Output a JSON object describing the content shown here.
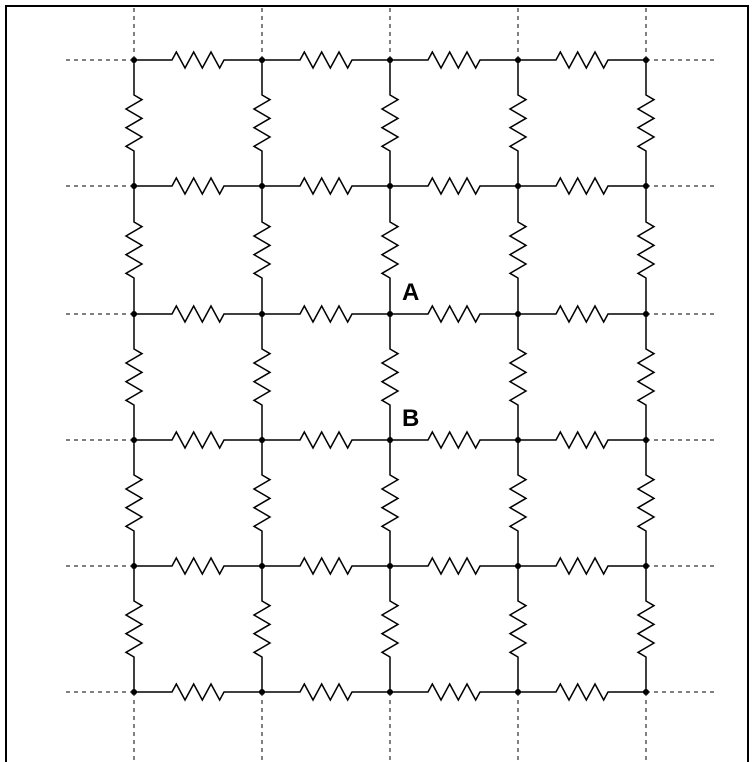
{
  "diagram": {
    "labels": {
      "a": "A",
      "b": "B"
    },
    "grid": {
      "rows": 6,
      "cols": 5
    }
  }
}
